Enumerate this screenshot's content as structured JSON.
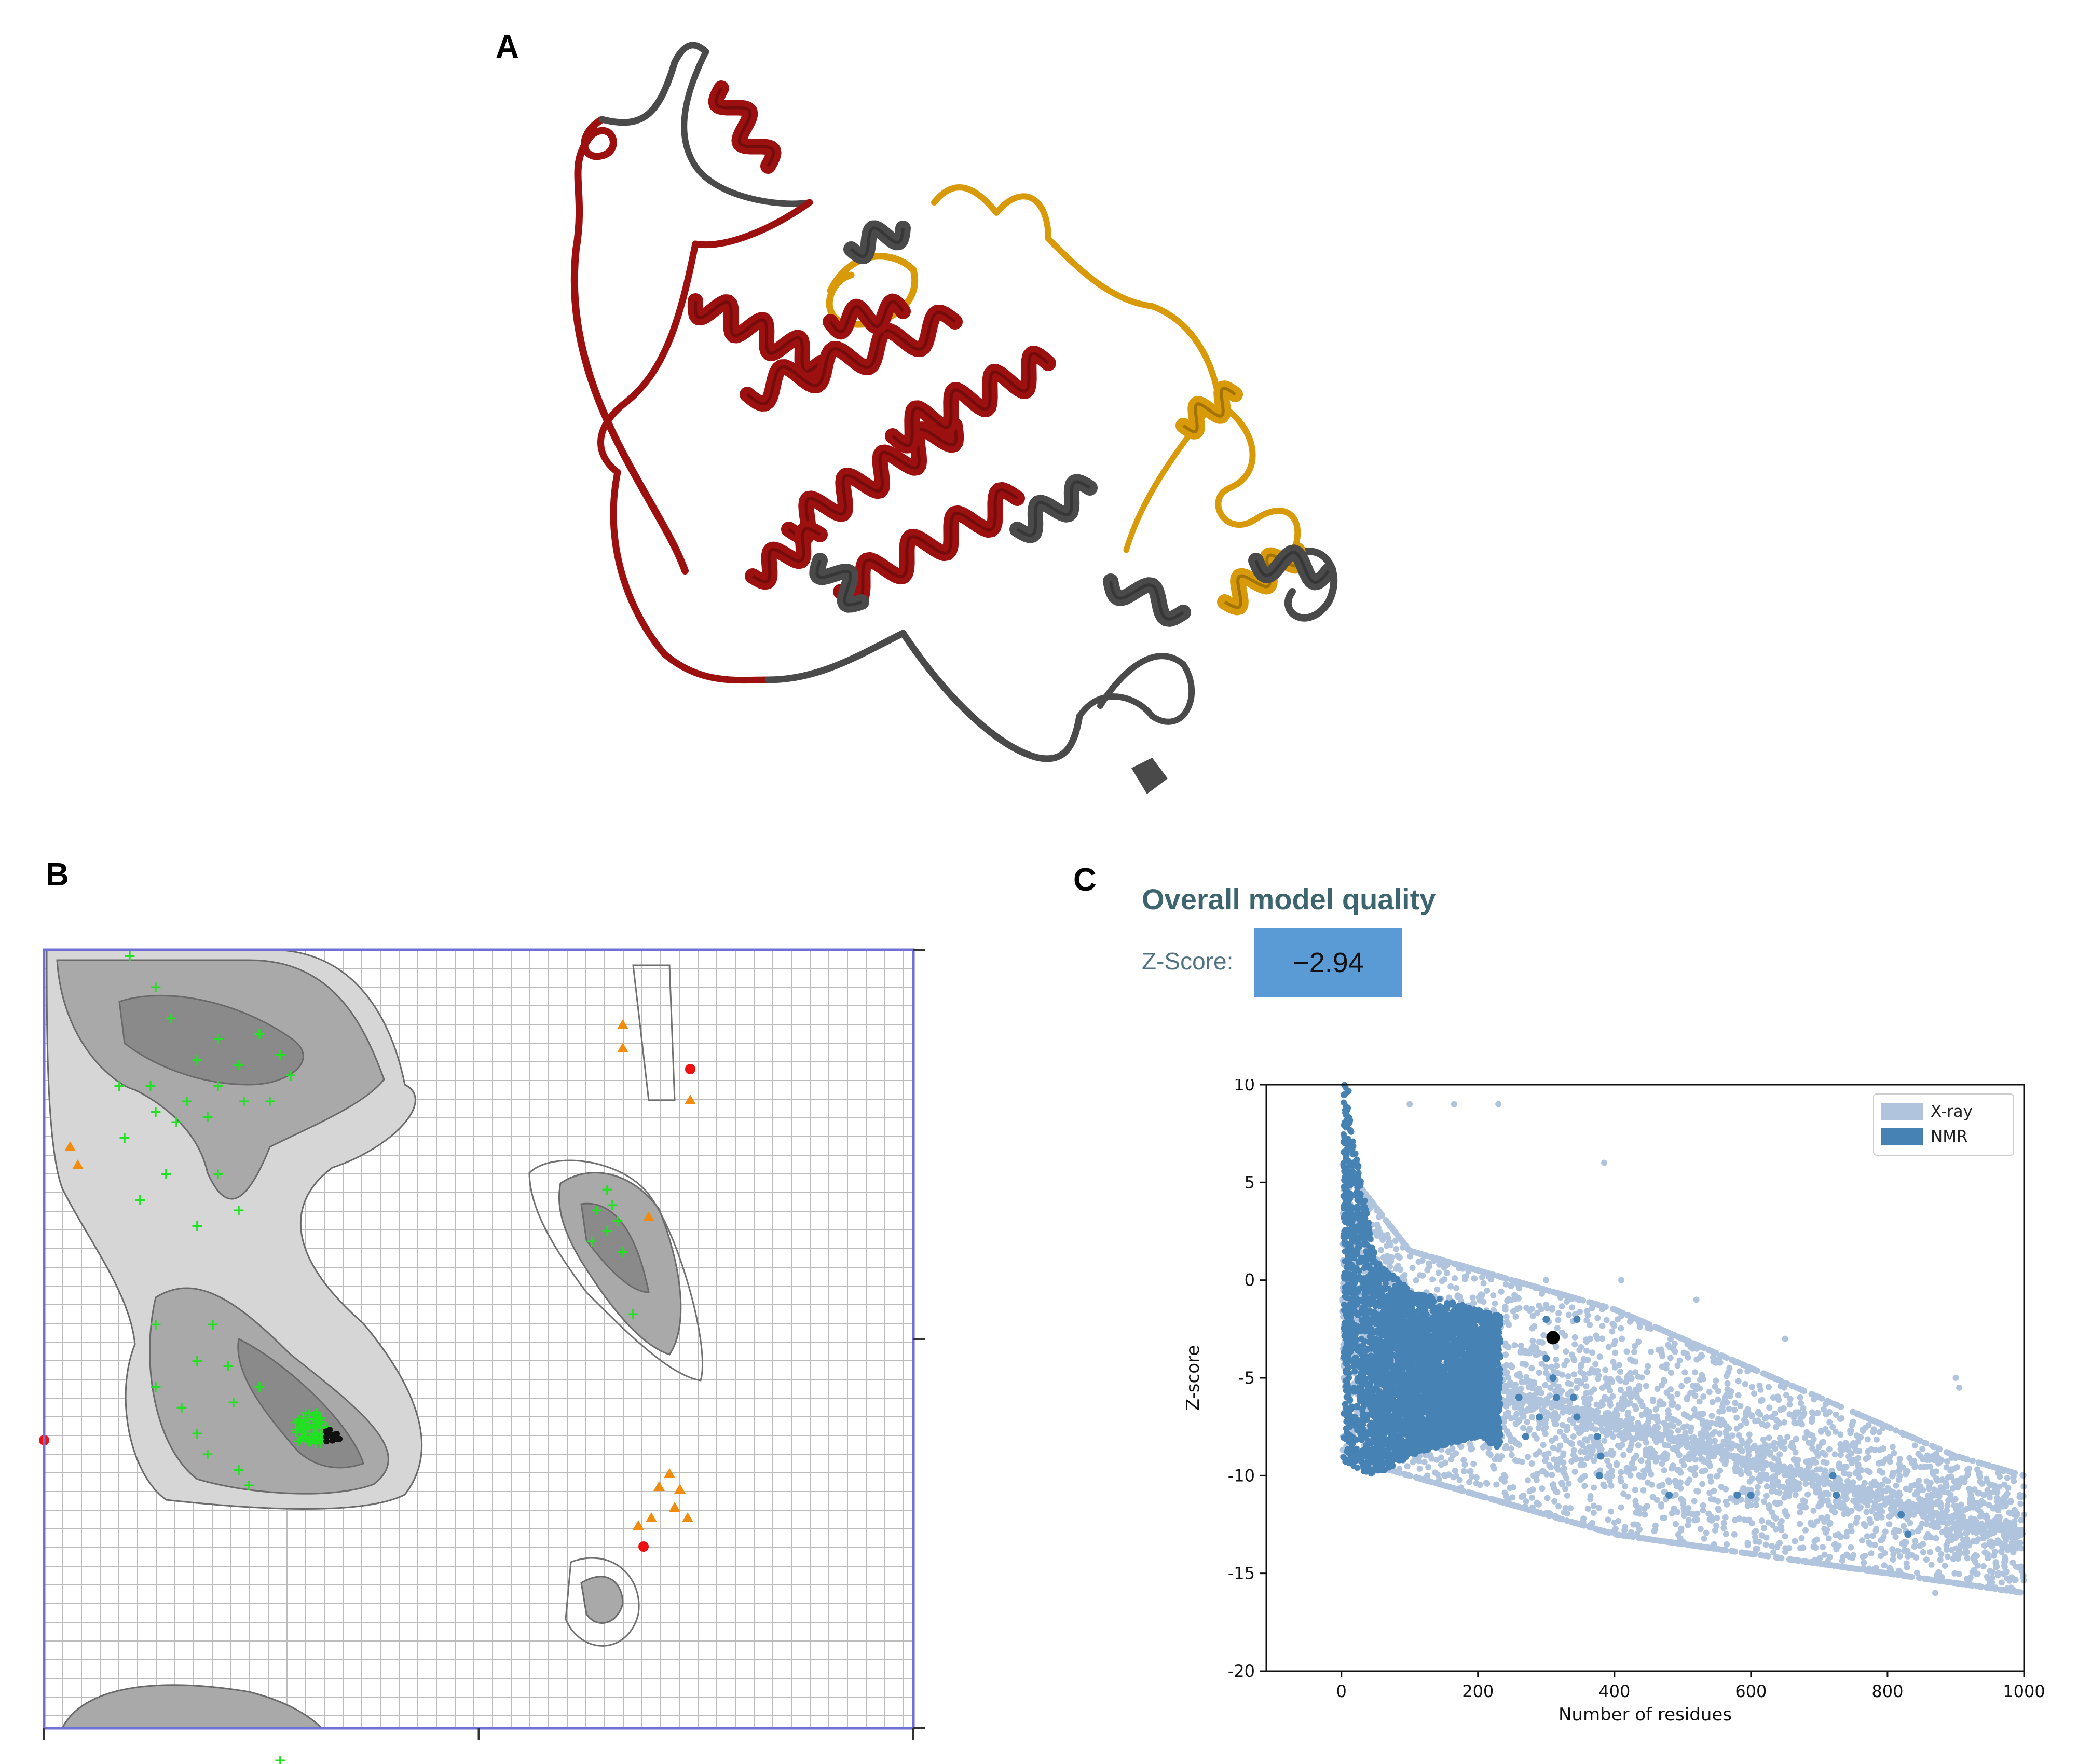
{
  "panels": {
    "a_label": "A",
    "b_label": "B",
    "c_label": "C"
  },
  "protein": {
    "colors": {
      "red": "#9c1010",
      "gold": "#d99a0a",
      "gray": "#4a4a4a"
    }
  },
  "ramachandran": {
    "colors": {
      "favoured": "#22e022",
      "allowed": "#f28c0e",
      "outlier": "#ee1111",
      "frame": "#6f6fd6"
    },
    "grid": true
  },
  "quality": {
    "title": "Overall model quality",
    "zscore_label": "Z-Score:",
    "zscore_value": "−2.94",
    "box_color": "#5b9bd5"
  },
  "chart_data": {
    "type": "scatter",
    "xlabel": "Number of residues",
    "ylabel": "Z-score",
    "xlim": [
      -110,
      1000
    ],
    "ylim": [
      -20,
      10
    ],
    "xticks": [
      0,
      200,
      400,
      600,
      800,
      1000
    ],
    "yticks": [
      10,
      5,
      0,
      -5,
      -10,
      -15,
      -20
    ],
    "legend_position": "top-right",
    "series": [
      {
        "name": "X-ray",
        "color": "#b0c4de",
        "trend": {
          "x": [
            0,
            100,
            200,
            300,
            400,
            500,
            600,
            700,
            800,
            900,
            1000
          ],
          "y_upper": [
            6,
            1.5,
            0.5,
            -0.5,
            -1.5,
            -3,
            -4.5,
            -6,
            -7.5,
            -9,
            -10
          ],
          "y_lower": [
            -9,
            -10,
            -11,
            -12,
            -13,
            -13.5,
            -14,
            -14.5,
            -15,
            -15.5,
            -16
          ]
        }
      },
      {
        "name": "NMR",
        "color": "#4682b4",
        "trend": {
          "x": [
            5,
            50,
            100,
            150,
            200,
            250,
            300,
            350,
            400
          ],
          "y_upper": [
            10,
            1,
            -0.5,
            -1,
            -1.5,
            -2,
            -2.5,
            -3,
            -4
          ],
          "y_lower": [
            -9.5,
            -10,
            -9,
            -8.5,
            -8,
            -9,
            -9.5,
            -10.5,
            -11
          ]
        }
      }
    ],
    "highlight_point": {
      "x": 310,
      "y": -2.94,
      "color": "#000000"
    }
  }
}
